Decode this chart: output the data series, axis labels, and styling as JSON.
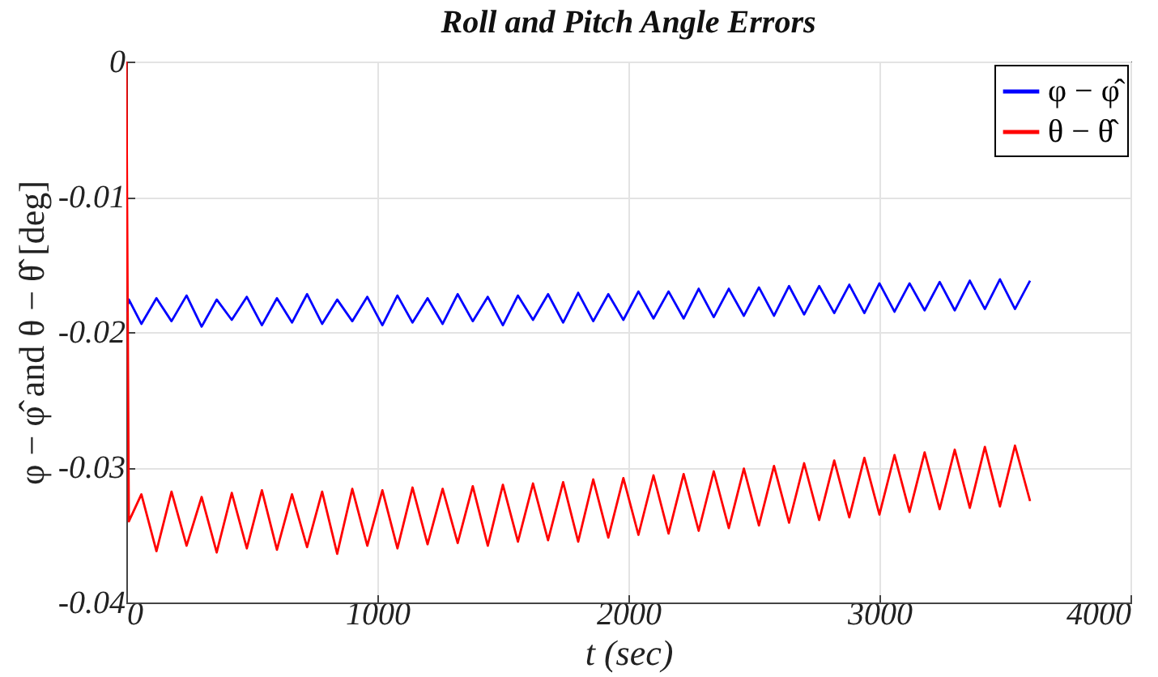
{
  "chart_data": {
    "type": "line",
    "title": "Roll and Pitch Angle Errors",
    "xlabel": "t (sec)",
    "ylabel": "φ − φ̂ and θ − θ̂ [deg]",
    "x": [
      0,
      10,
      60,
      120,
      180,
      240,
      300,
      360,
      420,
      480,
      540,
      600,
      660,
      720,
      780,
      840,
      900,
      960,
      1020,
      1080,
      1140,
      1200,
      1260,
      1320,
      1380,
      1440,
      1500,
      1560,
      1620,
      1680,
      1740,
      1800,
      1860,
      1920,
      1980,
      2040,
      2100,
      2160,
      2220,
      2280,
      2340,
      2400,
      2460,
      2520,
      2580,
      2640,
      2700,
      2760,
      2820,
      2880,
      2940,
      3000,
      3060,
      3120,
      3180,
      3240,
      3300,
      3360,
      3420,
      3480,
      3540,
      3600
    ],
    "series": [
      {
        "name": "φ − φ̂",
        "color": "#0000ff",
        "values": [
          -0.0185,
          -0.0176,
          -0.0194,
          -0.0175,
          -0.0192,
          -0.0173,
          -0.0196,
          -0.0176,
          -0.0191,
          -0.0174,
          -0.0195,
          -0.0175,
          -0.0193,
          -0.0172,
          -0.0194,
          -0.0176,
          -0.0192,
          -0.0174,
          -0.0195,
          -0.0173,
          -0.0193,
          -0.0175,
          -0.0194,
          -0.0172,
          -0.0192,
          -0.0174,
          -0.0195,
          -0.0173,
          -0.0191,
          -0.0172,
          -0.0193,
          -0.0171,
          -0.0192,
          -0.0172,
          -0.0191,
          -0.017,
          -0.019,
          -0.017,
          -0.019,
          -0.0168,
          -0.0189,
          -0.0168,
          -0.0188,
          -0.0167,
          -0.0188,
          -0.0166,
          -0.0187,
          -0.0166,
          -0.0186,
          -0.0165,
          -0.0186,
          -0.0164,
          -0.0185,
          -0.0164,
          -0.0184,
          -0.0163,
          -0.0184,
          -0.0162,
          -0.0183,
          -0.0161,
          -0.0183,
          -0.0162
        ]
      },
      {
        "name": "θ − θ̂",
        "color": "#ff0000",
        "values": [
          0,
          -0.034,
          -0.032,
          -0.0362,
          -0.0318,
          -0.0358,
          -0.0322,
          -0.0363,
          -0.0319,
          -0.036,
          -0.0317,
          -0.0361,
          -0.032,
          -0.0359,
          -0.0318,
          -0.0364,
          -0.0316,
          -0.0358,
          -0.0317,
          -0.036,
          -0.0315,
          -0.0357,
          -0.0316,
          -0.0356,
          -0.0314,
          -0.0358,
          -0.0313,
          -0.0355,
          -0.0312,
          -0.0354,
          -0.0311,
          -0.0355,
          -0.0309,
          -0.0352,
          -0.0308,
          -0.035,
          -0.0306,
          -0.0349,
          -0.0305,
          -0.0347,
          -0.0303,
          -0.0345,
          -0.0301,
          -0.0343,
          -0.0299,
          -0.0341,
          -0.0297,
          -0.0339,
          -0.0295,
          -0.0337,
          -0.0293,
          -0.0335,
          -0.0291,
          -0.0333,
          -0.0289,
          -0.0331,
          -0.0287,
          -0.033,
          -0.0285,
          -0.0329,
          -0.0284,
          -0.0325
        ]
      }
    ],
    "xlim": [
      0,
      4000
    ],
    "xticks": [
      0,
      1000,
      2000,
      3000,
      4000
    ],
    "ylim": [
      -0.04,
      0
    ],
    "yticks": [
      {
        "value": -0.04,
        "label": "-0.04"
      },
      {
        "value": -0.03,
        "label": "-0.03"
      },
      {
        "value": -0.02,
        "label": "-0.02"
      },
      {
        "value": -0.01,
        "label": "-0.01"
      },
      {
        "value": 0,
        "label": "0"
      }
    ],
    "grid": true,
    "legend": "top right"
  }
}
